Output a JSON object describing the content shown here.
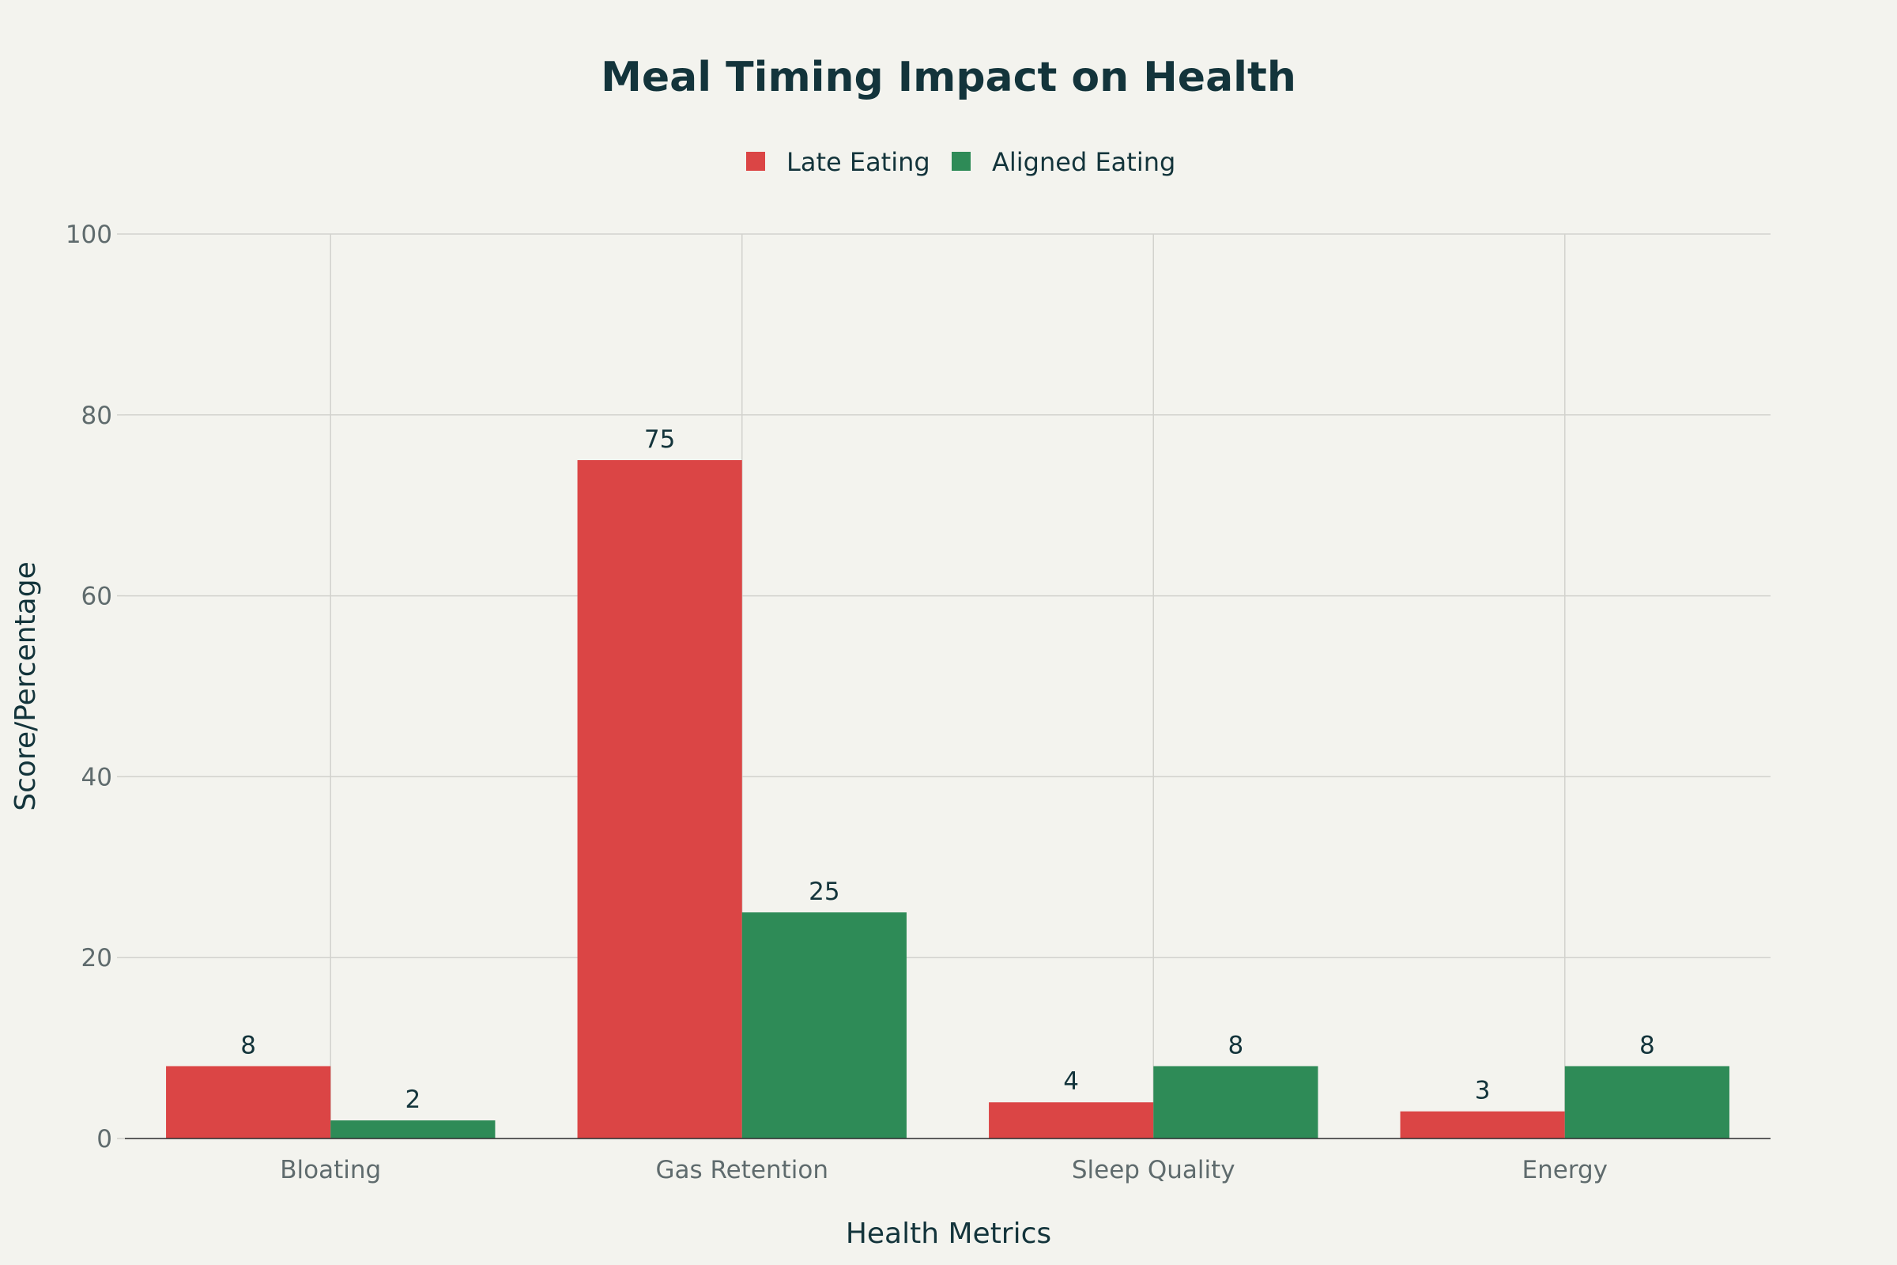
{
  "chart_data": {
    "type": "bar",
    "title": "Meal Timing Impact on Health",
    "xlabel": "Health Metrics",
    "ylabel": "Score/Percentage",
    "categories": [
      "Bloating",
      "Gas Retention",
      "Sleep Quality",
      "Energy"
    ],
    "series": [
      {
        "name": "Late Eating",
        "values": [
          8,
          75,
          4,
          3
        ],
        "color": "#db4545"
      },
      {
        "name": "Aligned Eating",
        "values": [
          2,
          25,
          8,
          8
        ],
        "color": "#2e8b57"
      }
    ],
    "ylim": [
      0,
      100
    ],
    "yticks": [
      0,
      20,
      40,
      60,
      80,
      100
    ],
    "grid": true,
    "legend_position": "top-center"
  }
}
